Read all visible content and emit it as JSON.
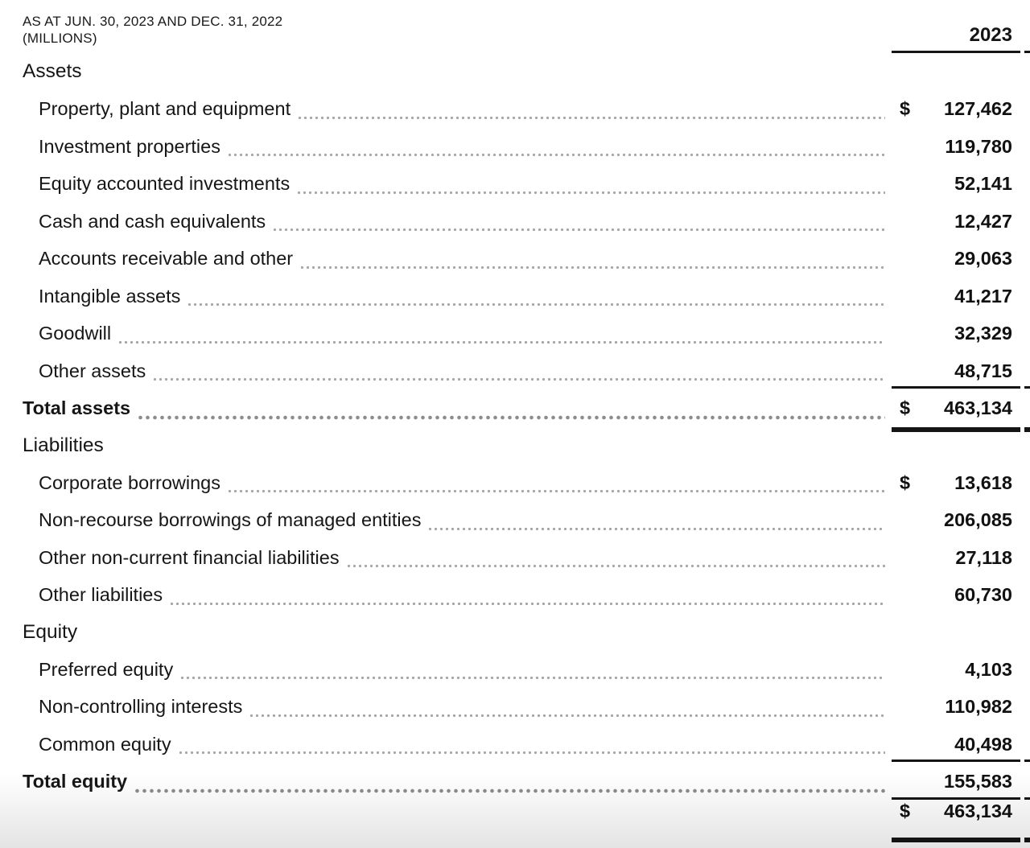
{
  "document": {
    "subtitle_line1": "AS AT JUN. 30, 2023 AND  DEC. 31, 2022",
    "subtitle_line2": "(MILLIONS)",
    "year_column_header": "2023"
  },
  "statement": {
    "section_titles": {
      "assets": "Assets",
      "liabilities": "Liabilities",
      "equity": "Equity"
    },
    "rows": [
      {
        "label": "Property, plant and equipment",
        "currency": "$",
        "value_2023": "127,462"
      },
      {
        "label": "Investment properties",
        "currency": "",
        "value_2023": "119,780"
      },
      {
        "label": "Equity accounted investments",
        "currency": "",
        "value_2023": "52,141"
      },
      {
        "label": "Cash and cash equivalents",
        "currency": "",
        "value_2023": "12,427"
      },
      {
        "label": "Accounts receivable and other",
        "currency": "",
        "value_2023": "29,063"
      },
      {
        "label": "Intangible assets",
        "currency": "",
        "value_2023": "41,217"
      },
      {
        "label": "Goodwill",
        "currency": "",
        "value_2023": "32,329"
      },
      {
        "label": "Other assets",
        "currency": "",
        "value_2023": "48,715"
      },
      {
        "label": "Total assets",
        "currency": "$",
        "value_2023": "463,134"
      },
      {
        "label": "Corporate borrowings",
        "currency": "$",
        "value_2023": "13,618"
      },
      {
        "label": "Non-recourse borrowings of managed entities",
        "currency": "",
        "value_2023": "206,085"
      },
      {
        "label": "Other non-current financial liabilities",
        "currency": "",
        "value_2023": "27,118"
      },
      {
        "label": "Other liabilities",
        "currency": "",
        "value_2023": "60,730"
      },
      {
        "label": "Preferred equity",
        "currency": "",
        "value_2023": "4,103"
      },
      {
        "label": "Non-controlling interests",
        "currency": "",
        "value_2023": "110,982"
      },
      {
        "label": "Common equity",
        "currency": "",
        "value_2023": "40,498"
      },
      {
        "label": "Total equity",
        "currency": "",
        "value_2023": "155,583"
      },
      {
        "label": "",
        "currency": "$",
        "value_2023": "463,134"
      }
    ],
    "colors": {
      "text": "#141414",
      "rule": "#151515",
      "leader_dots": "#a6a6a6",
      "leader_dots_total": "#8d8d8d"
    }
  }
}
